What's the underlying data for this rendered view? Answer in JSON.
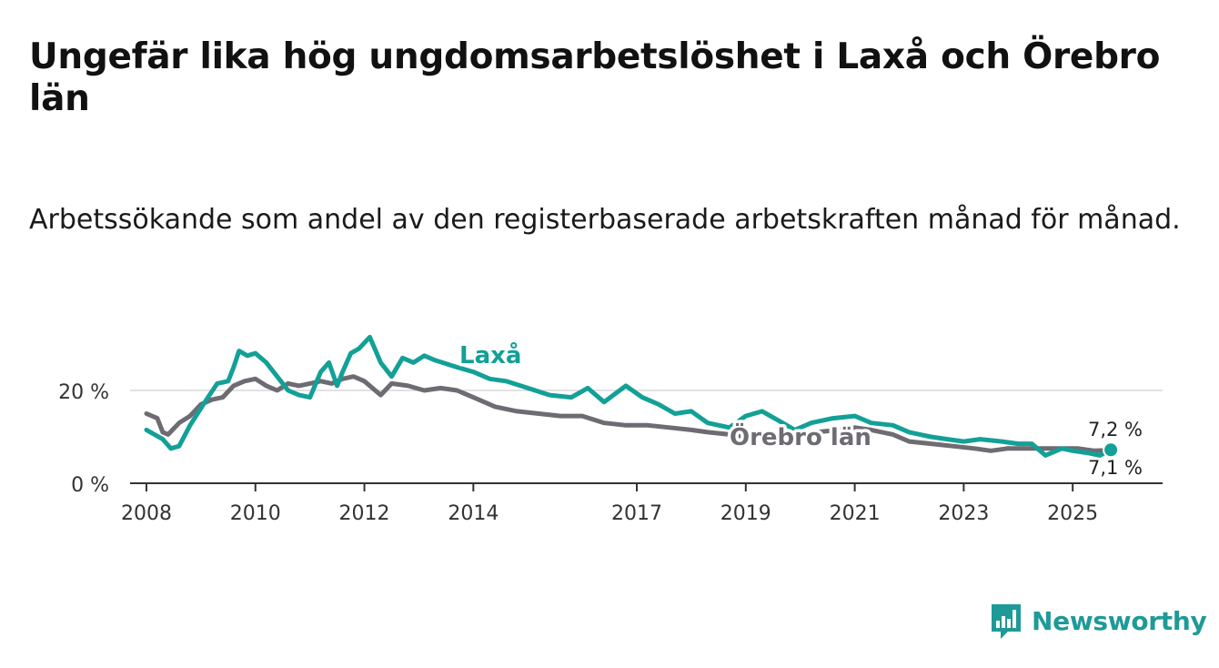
{
  "header": {
    "title": "Ungefär lika hög ungdomsarbetslöshet i Laxå och Örebro län",
    "subtitle": "Arbetssökande som andel av den registerbaserade arbetskraften månad för månad."
  },
  "brand": {
    "name": "Newsworthy",
    "icon": "newsworthy-logo-icon",
    "color": "#1e9a98"
  },
  "chart_data": {
    "type": "line",
    "title": "Ungefär lika hög ungdomsarbetslöshet i Laxå och Örebro län",
    "xlabel": "",
    "ylabel": "",
    "xlim": [
      2007.7,
      2026.65
    ],
    "ylim": [
      0,
      30
    ],
    "x_ticks": [
      2008,
      2010,
      2012,
      2014,
      2017,
      2019,
      2021,
      2023,
      2025
    ],
    "x_tick_labels": [
      "2008",
      "2010",
      "2012",
      "2014",
      "2017",
      "2019",
      "2021",
      "2023",
      "2025"
    ],
    "y_ticks": [
      0,
      20
    ],
    "y_tick_labels": [
      "0 %",
      "20 %"
    ],
    "grid": true,
    "series": [
      {
        "name": "Laxå",
        "label": "Laxå",
        "color": "#12a097",
        "end_label": "7,2 %",
        "x": [
          2008.0,
          2008.3,
          2008.45,
          2008.6,
          2008.8,
          2009.1,
          2009.3,
          2009.5,
          2009.6,
          2009.7,
          2009.85,
          2010.0,
          2010.2,
          2010.4,
          2010.6,
          2010.8,
          2011.0,
          2011.2,
          2011.35,
          2011.5,
          2011.6,
          2011.75,
          2011.9,
          2012.1,
          2012.3,
          2012.5,
          2012.7,
          2012.9,
          2013.1,
          2013.3,
          2013.7,
          2014.0,
          2014.3,
          2014.6,
          2015.0,
          2015.4,
          2015.8,
          2016.1,
          2016.4,
          2016.8,
          2017.1,
          2017.4,
          2017.7,
          2018.0,
          2018.3,
          2018.7,
          2019.0,
          2019.3,
          2019.6,
          2019.9,
          2020.2,
          2020.6,
          2021.0,
          2021.3,
          2021.7,
          2022.0,
          2022.4,
          2022.7,
          2023.0,
          2023.3,
          2023.7,
          2024.0,
          2024.25,
          2024.5,
          2024.8,
          2025.0,
          2025.3,
          2025.5,
          2025.7
        ],
        "y": [
          11.5,
          9.5,
          7.5,
          8.0,
          12.5,
          18.0,
          21.5,
          22.0,
          25.0,
          28.5,
          27.5,
          28.0,
          26.0,
          23.0,
          20.0,
          19.0,
          18.5,
          24.0,
          26.0,
          21.0,
          24.0,
          28.0,
          29.0,
          31.5,
          26.0,
          23.0,
          27.0,
          26.0,
          27.5,
          26.5,
          25.0,
          24.0,
          22.5,
          22.0,
          20.5,
          19.0,
          18.5,
          20.5,
          17.5,
          21.0,
          18.5,
          17.0,
          15.0,
          15.5,
          13.0,
          12.0,
          14.5,
          15.5,
          13.5,
          11.5,
          13.0,
          14.0,
          14.5,
          13.0,
          12.5,
          11.0,
          10.0,
          9.5,
          9.0,
          9.5,
          9.0,
          8.5,
          8.5,
          6.0,
          7.5,
          7.0,
          6.5,
          6.0,
          7.2
        ]
      },
      {
        "name": "Örebro län",
        "label": "Örebro län",
        "color": "#6e6b72",
        "end_label": "7,1 %",
        "x": [
          2008.0,
          2008.2,
          2008.3,
          2008.4,
          2008.6,
          2008.8,
          2009.0,
          2009.2,
          2009.4,
          2009.6,
          2009.8,
          2010.0,
          2010.2,
          2010.4,
          2010.6,
          2010.8,
          2011.0,
          2011.2,
          2011.4,
          2011.6,
          2011.8,
          2012.0,
          2012.3,
          2012.5,
          2012.8,
          2013.1,
          2013.4,
          2013.7,
          2014.0,
          2014.4,
          2014.8,
          2015.2,
          2015.6,
          2016.0,
          2016.4,
          2016.8,
          2017.2,
          2017.6,
          2018.0,
          2018.3,
          2018.7,
          2019.0,
          2019.3,
          2019.6,
          2019.9,
          2020.3,
          2020.7,
          2021.0,
          2021.3,
          2021.7,
          2022.0,
          2022.4,
          2022.8,
          2023.2,
          2023.5,
          2023.8,
          2024.1,
          2024.5,
          2024.8,
          2025.1,
          2025.4,
          2025.7
        ],
        "y": [
          15.0,
          14.0,
          11.0,
          10.5,
          13.0,
          14.5,
          17.0,
          18.0,
          18.5,
          21.0,
          22.0,
          22.5,
          21.0,
          20.0,
          21.5,
          21.0,
          21.5,
          22.0,
          21.5,
          22.5,
          23.0,
          22.0,
          19.0,
          21.5,
          21.0,
          20.0,
          20.5,
          20.0,
          18.5,
          16.5,
          15.5,
          15.0,
          14.5,
          14.5,
          13.0,
          12.5,
          12.5,
          12.0,
          11.5,
          11.0,
          10.5,
          10.0,
          10.5,
          10.5,
          10.0,
          11.0,
          11.5,
          12.0,
          11.5,
          10.5,
          9.0,
          8.5,
          8.0,
          7.5,
          7.0,
          7.5,
          7.5,
          7.5,
          7.5,
          7.5,
          7.0,
          7.1
        ]
      }
    ]
  }
}
